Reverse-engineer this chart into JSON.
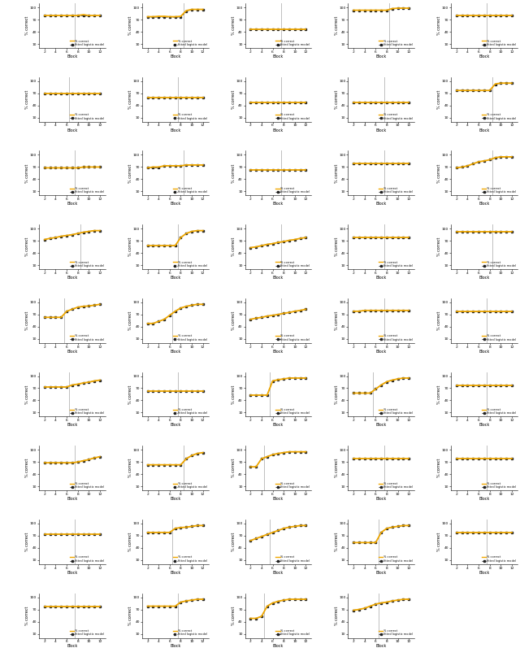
{
  "n_rows": 9,
  "n_cols": 5,
  "total_panels": 44,
  "x_ticks": [
    2,
    4,
    6,
    8,
    10,
    12
  ],
  "y_ticks": [
    10,
    40,
    70,
    100
  ],
  "xlabel": "Block",
  "ylabel": "% correct",
  "legend_correct": "% correct",
  "legend_model": "fitted logistic model",
  "line_color_correct": "#F0A800",
  "line_color_model": "#222222",
  "vline_color": "#C0C0C0",
  "background": "#FFFFFF",
  "panels": [
    {
      "y_correct": [
        80,
        80,
        80,
        80,
        80,
        80,
        80,
        82,
        80,
        80,
        80
      ],
      "y_model": [
        80,
        80,
        80,
        80,
        80,
        80,
        80,
        80,
        80,
        80,
        80
      ],
      "vline": 7.5
    },
    {
      "y_correct": [
        77,
        77,
        78,
        78,
        77,
        77,
        78,
        92,
        95,
        95,
        95
      ],
      "y_model": [
        76,
        76,
        76,
        76,
        76,
        76,
        76,
        90,
        95,
        95,
        95
      ],
      "vline": 8.5
    },
    {
      "y_correct": [
        47,
        47,
        47,
        47,
        47,
        47,
        47,
        47,
        47,
        47,
        47
      ],
      "y_model": [
        47,
        47,
        47,
        47,
        47,
        47,
        47,
        47,
        47,
        47,
        47
      ],
      "vline": 7.5
    },
    {
      "y_correct": [
        93,
        93,
        93,
        93,
        93,
        93,
        93,
        97,
        98,
        98,
        98
      ],
      "y_model": [
        93,
        93,
        93,
        93,
        93,
        93,
        93,
        96,
        98,
        98,
        98
      ],
      "vline": 8.5
    },
    {
      "y_correct": [
        80,
        80,
        80,
        80,
        80,
        80,
        80,
        80,
        80,
        80,
        80
      ],
      "y_model": [
        80,
        80,
        80,
        80,
        80,
        80,
        80,
        80,
        80,
        80,
        80
      ],
      "vline": 7.5
    },
    {
      "y_correct": [
        70,
        70,
        70,
        70,
        70,
        70,
        70,
        70,
        70,
        70,
        70
      ],
      "y_model": [
        70,
        70,
        70,
        70,
        70,
        70,
        70,
        70,
        70,
        70,
        70
      ],
      "vline": 6.5
    },
    {
      "y_correct": [
        60,
        60,
        60,
        60,
        60,
        60,
        60,
        60,
        60,
        60,
        60
      ],
      "y_model": [
        60,
        60,
        60,
        60,
        60,
        60,
        60,
        60,
        60,
        60,
        60
      ],
      "vline": 7.5
    },
    {
      "y_correct": [
        47,
        47,
        47,
        47,
        47,
        47,
        47,
        47,
        47,
        47,
        47
      ],
      "y_model": [
        47,
        47,
        47,
        47,
        47,
        47,
        47,
        47,
        47,
        47,
        47
      ],
      "vline": 7.5
    },
    {
      "y_correct": [
        47,
        47,
        47,
        47,
        47,
        47,
        47,
        47,
        47,
        47,
        47
      ],
      "y_model": [
        47,
        47,
        47,
        47,
        47,
        47,
        47,
        47,
        47,
        47,
        47
      ],
      "vline": 7.5
    },
    {
      "y_correct": [
        77,
        77,
        77,
        77,
        77,
        77,
        77,
        93,
        95,
        95,
        95
      ],
      "y_model": [
        77,
        77,
        77,
        77,
        77,
        77,
        77,
        92,
        95,
        95,
        95
      ],
      "vline": 8.5
    },
    {
      "y_correct": [
        68,
        68,
        68,
        68,
        68,
        68,
        68,
        70,
        70,
        70,
        70
      ],
      "y_model": [
        68,
        68,
        68,
        68,
        68,
        68,
        68,
        70,
        70,
        70,
        70
      ],
      "vline": 7.5
    },
    {
      "y_correct": [
        68,
        70,
        70,
        73,
        73,
        73,
        73,
        75,
        75,
        75,
        75
      ],
      "y_model": [
        68,
        68,
        68,
        73,
        73,
        73,
        73,
        75,
        75,
        75,
        75
      ],
      "vline": 8.5
    },
    {
      "y_correct": [
        63,
        63,
        63,
        63,
        63,
        63,
        63,
        63,
        63,
        63,
        63
      ],
      "y_model": [
        63,
        63,
        63,
        63,
        63,
        63,
        63,
        63,
        63,
        63,
        63
      ],
      "vline": 7.5
    },
    {
      "y_correct": [
        78,
        78,
        78,
        78,
        78,
        78,
        78,
        78,
        78,
        78,
        78
      ],
      "y_model": [
        78,
        78,
        78,
        78,
        78,
        78,
        78,
        78,
        78,
        78,
        78
      ],
      "vline": 7.5
    },
    {
      "y_correct": [
        68,
        70,
        73,
        78,
        83,
        85,
        88,
        93,
        95,
        95,
        95
      ],
      "y_model": [
        68,
        70,
        73,
        78,
        83,
        85,
        88,
        93,
        95,
        95,
        95
      ],
      "vline": 8.5
    },
    {
      "y_correct": [
        73,
        76,
        78,
        81,
        83,
        85,
        88,
        91,
        93,
        95,
        95
      ],
      "y_model": [
        73,
        76,
        78,
        81,
        83,
        85,
        88,
        91,
        93,
        95,
        95
      ],
      "vline": 8.5
    },
    {
      "y_correct": [
        58,
        58,
        58,
        58,
        58,
        58,
        78,
        88,
        93,
        95,
        95
      ],
      "y_model": [
        58,
        58,
        58,
        58,
        58,
        58,
        78,
        88,
        93,
        95,
        95
      ],
      "vline": 7.5
    },
    {
      "y_correct": [
        53,
        55,
        58,
        61,
        63,
        66,
        68,
        71,
        73,
        76,
        78
      ],
      "y_model": [
        53,
        55,
        58,
        61,
        63,
        66,
        68,
        71,
        73,
        76,
        78
      ],
      "vline": 7.5
    },
    {
      "y_correct": [
        78,
        78,
        78,
        78,
        78,
        78,
        78,
        78,
        78,
        78,
        78
      ],
      "y_model": [
        78,
        78,
        78,
        78,
        78,
        78,
        78,
        78,
        78,
        78,
        78
      ],
      "vline": 7.5
    },
    {
      "y_correct": [
        93,
        93,
        93,
        93,
        93,
        93,
        93,
        93,
        93,
        93,
        93
      ],
      "y_model": [
        93,
        93,
        93,
        93,
        93,
        93,
        93,
        93,
        93,
        93,
        93
      ],
      "vline": 8.5
    },
    {
      "y_correct": [
        63,
        63,
        63,
        63,
        78,
        83,
        88,
        90,
        91,
        93,
        95
      ],
      "y_model": [
        63,
        63,
        63,
        63,
        78,
        83,
        88,
        90,
        91,
        93,
        95
      ],
      "vline": 5.5
    },
    {
      "y_correct": [
        48,
        48,
        53,
        58,
        68,
        78,
        86,
        90,
        93,
        95,
        95
      ],
      "y_model": [
        48,
        48,
        53,
        58,
        68,
        78,
        86,
        90,
        93,
        95,
        95
      ],
      "vline": 6.5
    },
    {
      "y_correct": [
        58,
        61,
        63,
        66,
        68,
        70,
        73,
        75,
        78,
        80,
        83
      ],
      "y_model": [
        58,
        61,
        63,
        66,
        68,
        70,
        73,
        75,
        78,
        80,
        83
      ],
      "vline": 7.5
    },
    {
      "y_correct": [
        78,
        78,
        80,
        80,
        80,
        80,
        80,
        80,
        80,
        80,
        80
      ],
      "y_model": [
        78,
        78,
        80,
        80,
        80,
        80,
        80,
        80,
        80,
        80,
        80
      ],
      "vline": 7.5
    },
    {
      "y_correct": [
        78,
        78,
        78,
        78,
        78,
        78,
        78,
        78,
        78,
        78,
        78
      ],
      "y_model": [
        78,
        78,
        78,
        78,
        78,
        78,
        78,
        78,
        78,
        78,
        78
      ],
      "vline": 7.5
    },
    {
      "y_correct": [
        73,
        73,
        73,
        73,
        73,
        78,
        80,
        83,
        85,
        88,
        90
      ],
      "y_model": [
        73,
        73,
        73,
        73,
        73,
        78,
        80,
        83,
        85,
        88,
        90
      ],
      "vline": 6.5
    },
    {
      "y_correct": [
        63,
        63,
        63,
        63,
        63,
        63,
        63,
        63,
        63,
        63,
        63
      ],
      "y_model": [
        63,
        63,
        63,
        63,
        63,
        63,
        63,
        63,
        63,
        63,
        63
      ],
      "vline": 7.5
    },
    {
      "y_correct": [
        53,
        53,
        53,
        53,
        88,
        91,
        93,
        95,
        95,
        95,
        95
      ],
      "y_model": [
        53,
        53,
        53,
        53,
        88,
        91,
        93,
        95,
        95,
        95,
        95
      ],
      "vline": 5.5
    },
    {
      "y_correct": [
        58,
        58,
        58,
        58,
        68,
        78,
        86,
        90,
        93,
        95,
        95
      ],
      "y_model": [
        58,
        58,
        58,
        58,
        68,
        78,
        86,
        90,
        93,
        95,
        95
      ],
      "vline": 5.5
    },
    {
      "y_correct": [
        78,
        78,
        78,
        78,
        78,
        78,
        78,
        78,
        78,
        78,
        78
      ],
      "y_model": [
        78,
        78,
        78,
        78,
        78,
        78,
        78,
        78,
        78,
        78,
        78
      ],
      "vline": 7.5
    },
    {
      "y_correct": [
        68,
        68,
        68,
        68,
        68,
        68,
        70,
        73,
        76,
        80,
        83
      ],
      "y_model": [
        68,
        68,
        68,
        68,
        68,
        68,
        70,
        73,
        76,
        80,
        83
      ],
      "vline": 7.5
    },
    {
      "y_correct": [
        63,
        63,
        63,
        63,
        63,
        63,
        63,
        78,
        86,
        91,
        93
      ],
      "y_model": [
        63,
        63,
        63,
        63,
        63,
        63,
        63,
        78,
        86,
        91,
        93
      ],
      "vline": 8.5
    },
    {
      "y_correct": [
        58,
        58,
        78,
        83,
        88,
        91,
        93,
        95,
        95,
        95,
        95
      ],
      "y_model": [
        58,
        58,
        78,
        83,
        88,
        91,
        93,
        95,
        95,
        95,
        95
      ],
      "vline": 4.5
    },
    {
      "y_correct": [
        78,
        78,
        78,
        78,
        78,
        78,
        78,
        78,
        78,
        78,
        78
      ],
      "y_model": [
        78,
        78,
        78,
        78,
        78,
        78,
        78,
        78,
        78,
        78,
        78
      ],
      "vline": 7.5
    },
    {
      "y_correct": [
        78,
        78,
        78,
        78,
        78,
        78,
        78,
        78,
        78,
        78,
        78
      ],
      "y_model": [
        78,
        78,
        78,
        78,
        78,
        78,
        78,
        78,
        78,
        78,
        78
      ],
      "vline": 7.5
    },
    {
      "y_correct": [
        73,
        73,
        73,
        73,
        73,
        73,
        73,
        73,
        73,
        73,
        73
      ],
      "y_model": [
        73,
        73,
        73,
        73,
        73,
        73,
        73,
        73,
        73,
        73,
        73
      ],
      "vline": 7.5
    },
    {
      "y_correct": [
        78,
        78,
        78,
        78,
        78,
        88,
        90,
        91,
        93,
        95,
        95
      ],
      "y_model": [
        78,
        78,
        78,
        78,
        78,
        88,
        90,
        91,
        93,
        95,
        95
      ],
      "vline": 6.5
    },
    {
      "y_correct": [
        58,
        63,
        68,
        73,
        78,
        83,
        88,
        91,
        93,
        95,
        95
      ],
      "y_model": [
        58,
        63,
        68,
        73,
        78,
        83,
        88,
        91,
        93,
        95,
        95
      ],
      "vline": 5.5
    },
    {
      "y_correct": [
        53,
        53,
        53,
        53,
        53,
        78,
        88,
        91,
        93,
        95,
        95
      ],
      "y_model": [
        53,
        53,
        53,
        53,
        53,
        78,
        88,
        91,
        93,
        95,
        95
      ],
      "vline": 6.5
    },
    {
      "y_correct": [
        78,
        78,
        78,
        78,
        78,
        78,
        78,
        78,
        78,
        78,
        78
      ],
      "y_model": [
        78,
        78,
        78,
        78,
        78,
        78,
        78,
        78,
        78,
        78,
        78
      ],
      "vline": 7.5
    },
    {
      "y_correct": [
        78,
        78,
        78,
        78,
        78,
        78,
        78,
        78,
        78,
        78,
        78
      ],
      "y_model": [
        78,
        78,
        78,
        78,
        78,
        78,
        78,
        78,
        78,
        78,
        78
      ],
      "vline": 7.5
    },
    {
      "y_correct": [
        78,
        78,
        78,
        78,
        78,
        78,
        88,
        91,
        93,
        95,
        95
      ],
      "y_model": [
        78,
        78,
        78,
        78,
        78,
        78,
        88,
        91,
        93,
        95,
        95
      ],
      "vline": 7.5
    },
    {
      "y_correct": [
        48,
        48,
        53,
        78,
        86,
        90,
        93,
        95,
        95,
        95,
        95
      ],
      "y_model": [
        48,
        48,
        53,
        78,
        86,
        90,
        93,
        95,
        95,
        95,
        95
      ],
      "vline": 4.5
    },
    {
      "y_correct": [
        68,
        70,
        73,
        78,
        83,
        86,
        88,
        91,
        93,
        95,
        95
      ],
      "y_model": [
        68,
        70,
        73,
        78,
        83,
        86,
        88,
        91,
        93,
        95,
        95
      ],
      "vline": 6.5
    }
  ]
}
